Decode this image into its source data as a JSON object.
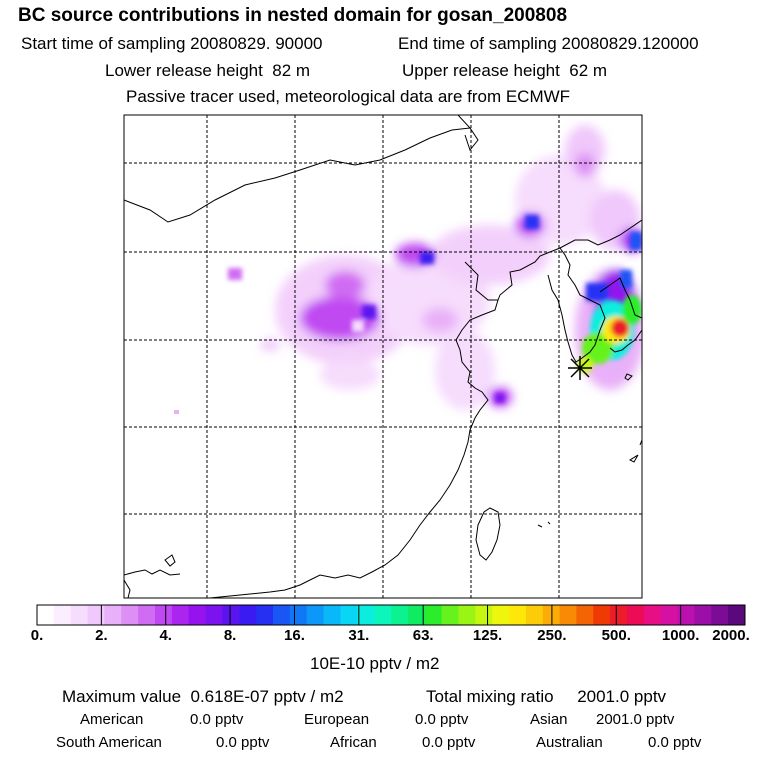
{
  "header": {
    "title": "BC  source contributions in nested domain for gosan_200808",
    "start_label": "Start time of sampling",
    "start_value": "20080829. 90000",
    "end_label": "End time of sampling",
    "end_value": "20080829.120000",
    "lower_label": "Lower release height",
    "lower_value": "82 m",
    "upper_label": "Upper release height",
    "upper_value": "62 m",
    "tracer_note": "Passive tracer used, meteorological data are from ECMWF"
  },
  "colorbar": {
    "labels": [
      "0.",
      "2.",
      "4.",
      "8.",
      "16.",
      "31.",
      "63.",
      "125.",
      "250.",
      "500.",
      "1000.",
      "2000."
    ],
    "units": "10E-10 pptv / m2",
    "colors": [
      "#ffffff",
      "#fbeefe",
      "#f6dcfd",
      "#f0c8fb",
      "#e8b0f8",
      "#dd8ff5",
      "#d06cf3",
      "#c048f2",
      "#ab24f0",
      "#9413ee",
      "#7b12ef",
      "#5b14f0",
      "#3a1bf2",
      "#2530f3",
      "#1a55f5",
      "#1078f7",
      "#0c98f8",
      "#0ab8f9",
      "#09d5f5",
      "#0beedf",
      "#0cf5ba",
      "#0df290",
      "#10ec62",
      "#2aee2c",
      "#66f21c",
      "#9af515",
      "#c6f712",
      "#eef60e",
      "#fde80a",
      "#fdcc08",
      "#fbad06",
      "#f88a05",
      "#f56404",
      "#f03a05",
      "#ec1c2a",
      "#ec0c56",
      "#e80f84",
      "#d510a2",
      "#bb0fae",
      "#9c0ea8",
      "#7c0c96",
      "#5a087c"
    ]
  },
  "map": {
    "receptor_marker": "asterisk-marker"
  },
  "footer": {
    "max_label": "Maximum value",
    "max_value": "0.618E-07 pptv / m2",
    "total_label": "Total mixing ratio",
    "total_value": "2001.0 pptv",
    "regions": [
      {
        "name": "American",
        "value": "0.0 pptv"
      },
      {
        "name": "European",
        "value": "0.0 pptv"
      },
      {
        "name": "Asian",
        "value": "2001.0 pptv"
      },
      {
        "name": "South American",
        "value": "0.0 pptv"
      },
      {
        "name": "African",
        "value": "0.0 pptv"
      },
      {
        "name": "Australian",
        "value": "0.0 pptv"
      }
    ]
  }
}
